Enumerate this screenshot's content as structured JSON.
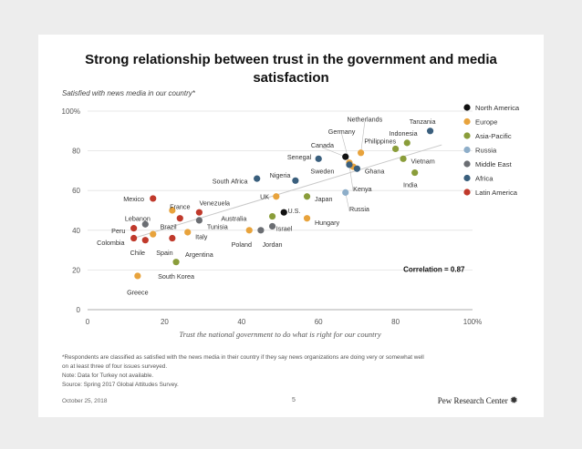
{
  "slide": {
    "title_lines": [
      "Strong relationship between trust in the government and media",
      "satisfaction"
    ],
    "subtitle": "Satisfied with news media in our country*",
    "footnotes": [
      "*Respondents are classified as satisfied with the news media in their country if they say news organizations are doing very or somewhat well",
      "on at least three of four issues surveyed.",
      "Note: Data for Turkey not available.",
      "Source: Spring 2017 Global Attitudes Survey."
    ],
    "date": "October 25, 2018",
    "page_number": "5",
    "brand": "Pew Research Center",
    "brand_icon": "sunburst-logo-icon"
  },
  "chart_data": {
    "type": "scatter",
    "xlabel": "Trust the national government to do what is right for our country",
    "ylabel": "Satisfied with news media in our country*",
    "xlim": [
      0,
      100
    ],
    "ylim": [
      0,
      100
    ],
    "x_ticks": [
      "0",
      "20",
      "40",
      "60",
      "80",
      "100%"
    ],
    "y_ticks": [
      "0",
      "20",
      "40",
      "60",
      "80",
      "100%"
    ],
    "correlation_label": "Correlation = 0.87",
    "trendline": {
      "x1": 12,
      "y1": 36,
      "x2": 92,
      "y2": 83
    },
    "legend": [
      {
        "name": "North America",
        "color": "#111111"
      },
      {
        "name": "Europe",
        "color": "#e8a33c"
      },
      {
        "name": "Asia-Pacific",
        "color": "#8a9d3a"
      },
      {
        "name": "Russia",
        "color": "#8eaec9"
      },
      {
        "name": "Middle East",
        "color": "#6b6e73"
      },
      {
        "name": "Africa",
        "color": "#3a5f7d"
      },
      {
        "name": "Latin America",
        "color": "#c0392b"
      }
    ],
    "points": [
      {
        "label": "Tanzania",
        "x": 89,
        "y": 90,
        "region": "Africa",
        "color": "#3a5f7d",
        "lx": 87,
        "ly": 95,
        "anchor": "middle"
      },
      {
        "label": "Indonesia",
        "x": 83,
        "y": 84,
        "region": "Asia-Pacific",
        "color": "#8a9d3a",
        "lx": 82,
        "ly": 89,
        "anchor": "middle"
      },
      {
        "label": "Philippines",
        "x": 80,
        "y": 81,
        "region": "Asia-Pacific",
        "color": "#8a9d3a",
        "lx": 76,
        "ly": 85,
        "anchor": "middle"
      },
      {
        "label": "Vietnam",
        "x": 82,
        "y": 76,
        "region": "Asia-Pacific",
        "color": "#8a9d3a",
        "lx": 84,
        "ly": 75,
        "anchor": "start"
      },
      {
        "label": "India",
        "x": 85,
        "y": 69,
        "region": "Asia-Pacific",
        "color": "#8a9d3a",
        "lx": 82,
        "ly": 63,
        "anchor": "start"
      },
      {
        "label": "Netherlands",
        "x": 71,
        "y": 79,
        "region": "Europe",
        "color": "#e8a33c",
        "lx": 72,
        "ly": 96,
        "anchor": "middle"
      },
      {
        "label": "Germany",
        "x": 68,
        "y": 74,
        "region": "Europe",
        "color": "#e8a33c",
        "lx": 66,
        "ly": 90,
        "anchor": "middle"
      },
      {
        "label": "Canada",
        "x": 67,
        "y": 77,
        "region": "North America",
        "color": "#111111",
        "lx": 61,
        "ly": 83,
        "anchor": "middle"
      },
      {
        "label": "Senegal",
        "x": 60,
        "y": 76,
        "region": "Africa",
        "color": "#3a5f7d",
        "lx": 55,
        "ly": 77,
        "anchor": "middle"
      },
      {
        "label": "Sweden",
        "x": 69,
        "y": 72,
        "region": "Europe",
        "color": "#e8a33c",
        "lx": 61,
        "ly": 70,
        "anchor": "middle"
      },
      {
        "label": "Ghana",
        "x": 70,
        "y": 71,
        "region": "Africa",
        "color": "#3a5f7d",
        "lx": 72,
        "ly": 70,
        "anchor": "start"
      },
      {
        "label": "Kenya",
        "x": 68,
        "y": 73,
        "region": "Africa",
        "color": "#3a5f7d",
        "lx": 69,
        "ly": 61,
        "anchor": "start"
      },
      {
        "label": "Russia",
        "x": 67,
        "y": 59,
        "region": "Russia",
        "color": "#8eaec9",
        "lx": 68,
        "ly": 51,
        "anchor": "start"
      },
      {
        "label": "South Africa",
        "x": 44,
        "y": 66,
        "region": "Africa",
        "color": "#3a5f7d",
        "lx": 37,
        "ly": 65,
        "anchor": "middle"
      },
      {
        "label": "Nigeria",
        "x": 54,
        "y": 65,
        "region": "Africa",
        "color": "#3a5f7d",
        "lx": 50,
        "ly": 68,
        "anchor": "middle"
      },
      {
        "label": "UK",
        "x": 49,
        "y": 57,
        "region": "Europe",
        "color": "#e8a33c",
        "lx": 46,
        "ly": 57,
        "anchor": "middle"
      },
      {
        "label": "Japan",
        "x": 57,
        "y": 57,
        "region": "Asia-Pacific",
        "color": "#8a9d3a",
        "lx": 59,
        "ly": 56,
        "anchor": "start"
      },
      {
        "label": "Australia",
        "x": 48,
        "y": 47,
        "region": "Asia-Pacific",
        "color": "#8a9d3a",
        "lx": 38,
        "ly": 46,
        "anchor": "middle"
      },
      {
        "label": "U.S.",
        "x": 51,
        "y": 49,
        "region": "North America",
        "color": "#111111",
        "lx": 52,
        "ly": 50,
        "anchor": "start"
      },
      {
        "label": "Israel",
        "x": 48,
        "y": 42,
        "region": "Middle East",
        "color": "#6b6e73",
        "lx": 49,
        "ly": 41,
        "anchor": "start"
      },
      {
        "label": "Hungary",
        "x": 57,
        "y": 46,
        "region": "Europe",
        "color": "#e8a33c",
        "lx": 59,
        "ly": 44,
        "anchor": "start"
      },
      {
        "label": "Poland",
        "x": 42,
        "y": 40,
        "region": "Europe",
        "color": "#e8a33c",
        "lx": 40,
        "ly": 33,
        "anchor": "middle"
      },
      {
        "label": "Jordan",
        "x": 45,
        "y": 40,
        "region": "Middle East",
        "color": "#6b6e73",
        "lx": 48,
        "ly": 33,
        "anchor": "middle"
      },
      {
        "label": "Venezuela",
        "x": 29,
        "y": 49,
        "region": "Latin America",
        "color": "#c0392b",
        "lx": 33,
        "ly": 54,
        "anchor": "middle"
      },
      {
        "label": "France",
        "x": 22,
        "y": 50,
        "region": "Europe",
        "color": "#e8a33c",
        "lx": 24,
        "ly": 52,
        "anchor": "middle"
      },
      {
        "label": "Tunisia",
        "x": 29,
        "y": 45,
        "region": "Middle East",
        "color": "#6b6e73",
        "lx": 31,
        "ly": 42,
        "anchor": "start"
      },
      {
        "label": "Mexico",
        "x": 17,
        "y": 56,
        "region": "Latin America",
        "color": "#c0392b",
        "lx": 12,
        "ly": 56,
        "anchor": "middle"
      },
      {
        "label": "Lebanon",
        "x": 15,
        "y": 43,
        "region": "Middle East",
        "color": "#6b6e73",
        "lx": 13,
        "ly": 46,
        "anchor": "middle"
      },
      {
        "label": "Brazil",
        "x": 24,
        "y": 46,
        "region": "Latin America",
        "color": "#c0392b",
        "lx": 21,
        "ly": 42,
        "anchor": "middle"
      },
      {
        "label": "Italy",
        "x": 26,
        "y": 39,
        "region": "Europe",
        "color": "#e8a33c",
        "lx": 28,
        "ly": 37,
        "anchor": "start"
      },
      {
        "label": "Peru",
        "x": 12,
        "y": 41,
        "region": "Latin America",
        "color": "#c0392b",
        "lx": 8,
        "ly": 40,
        "anchor": "middle"
      },
      {
        "label": "Colombia",
        "x": 12,
        "y": 36,
        "region": "Latin America",
        "color": "#c0392b",
        "lx": 6,
        "ly": 34,
        "anchor": "middle"
      },
      {
        "label": "Chile",
        "x": 15,
        "y": 35,
        "region": "Latin America",
        "color": "#c0392b",
        "lx": 13,
        "ly": 29,
        "anchor": "middle"
      },
      {
        "label": "Spain",
        "x": 17,
        "y": 38,
        "region": "Europe",
        "color": "#e8a33c",
        "lx": 20,
        "ly": 29,
        "anchor": "middle"
      },
      {
        "label": "Argentina",
        "x": 22,
        "y": 36,
        "region": "Latin America",
        "color": "#c0392b",
        "lx": 29,
        "ly": 28,
        "anchor": "middle"
      },
      {
        "label": "South Korea",
        "x": 23,
        "y": 24,
        "region": "Asia-Pacific",
        "color": "#8a9d3a",
        "lx": 23,
        "ly": 17,
        "anchor": "middle"
      },
      {
        "label": "Greece",
        "x": 13,
        "y": 17,
        "region": "Europe",
        "color": "#e8a33c",
        "lx": 13,
        "ly": 9,
        "anchor": "middle"
      }
    ]
  }
}
